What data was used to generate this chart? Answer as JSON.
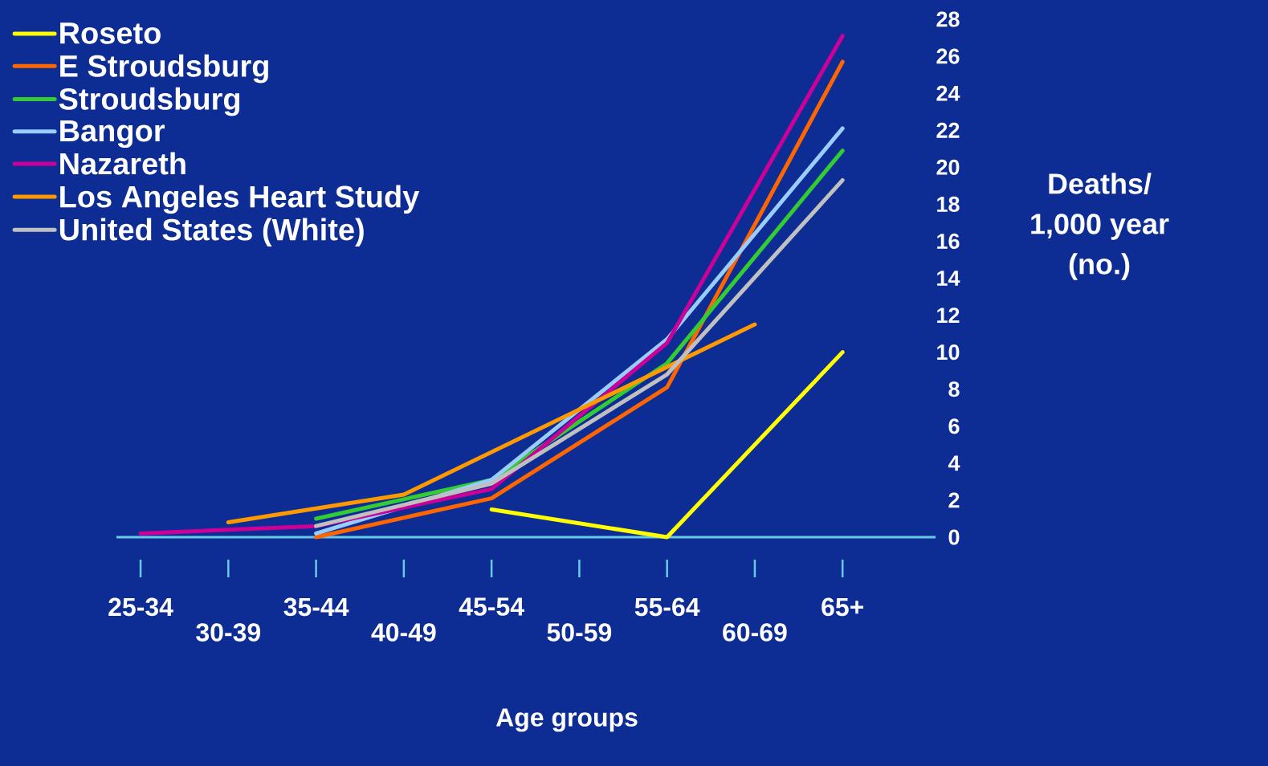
{
  "chart_data": {
    "type": "line",
    "xlabel": "Age groups",
    "ylabel": "Deaths/ 1,000 year (no.)",
    "categories": [
      "25-34",
      "30-39",
      "35-44",
      "40-49",
      "45-54",
      "50-59",
      "55-64",
      "60-69",
      "65+"
    ],
    "series": [
      {
        "name": "Roseto",
        "color": "#ffff00",
        "values": [
          null,
          null,
          null,
          null,
          1.5,
          null,
          0,
          null,
          10
        ]
      },
      {
        "name": "E Stroudsburg",
        "color": "#ff6600",
        "values": [
          null,
          null,
          0,
          null,
          2.1,
          null,
          8.1,
          null,
          25.7
        ]
      },
      {
        "name": "Stroudsburg",
        "color": "#33cc33",
        "values": [
          null,
          null,
          1.0,
          null,
          3.1,
          null,
          9.4,
          null,
          20.9
        ]
      },
      {
        "name": "Bangor",
        "color": "#99ccff",
        "values": [
          null,
          null,
          0.2,
          null,
          3.1,
          null,
          10.7,
          null,
          22.1
        ]
      },
      {
        "name": "Nazareth",
        "color": "#cc0099",
        "values": [
          0.2,
          null,
          0.6,
          null,
          2.6,
          null,
          10.5,
          null,
          27.1
        ]
      },
      {
        "name": "Los Angeles Heart Study",
        "color": "#ff9900",
        "values": [
          null,
          0.8,
          null,
          2.3,
          null,
          6.9,
          null,
          11.5,
          null
        ]
      },
      {
        "name": "United States (White)",
        "color": "#c0c0c0",
        "values": [
          null,
          null,
          0.6,
          null,
          2.9,
          null,
          8.8,
          null,
          19.3
        ]
      }
    ],
    "ylim": [
      0,
      28
    ],
    "yticks": [
      0,
      2,
      4,
      6,
      8,
      10,
      12,
      14,
      16,
      18,
      20,
      22,
      24,
      26,
      28
    ],
    "legend": "top left"
  }
}
